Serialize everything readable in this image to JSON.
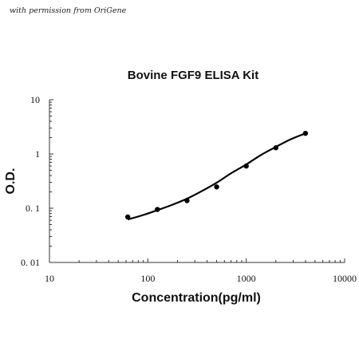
{
  "watermark": "with permission from OriGene",
  "chart_data": {
    "type": "scatter",
    "title": "Bovine FGF9 ELISA Kit",
    "xlabel": "Concentration(pg/ml)",
    "ylabel": "O.D.",
    "x_scale": "log",
    "y_scale": "log",
    "xlim": [
      10,
      10000
    ],
    "ylim": [
      0.01,
      10
    ],
    "x_ticks": [
      "10",
      "100",
      "1000",
      "10000"
    ],
    "y_ticks": [
      "10",
      "1",
      "0. 1",
      "0. 01"
    ],
    "series": [
      {
        "x": [
          62.5,
          125,
          250,
          500,
          1000,
          2000,
          4000
        ],
        "y": [
          0.069,
          0.095,
          0.138,
          0.247,
          0.6,
          1.3,
          2.4
        ]
      }
    ],
    "fit_curve": {
      "x": [
        62.5,
        90,
        125,
        180,
        250,
        350,
        500,
        700,
        1000,
        1400,
        2000,
        2800,
        4000
      ],
      "y": [
        0.062,
        0.075,
        0.092,
        0.117,
        0.15,
        0.205,
        0.295,
        0.44,
        0.64,
        0.95,
        1.35,
        1.85,
        2.4
      ]
    },
    "grid": false,
    "legend": "none"
  }
}
